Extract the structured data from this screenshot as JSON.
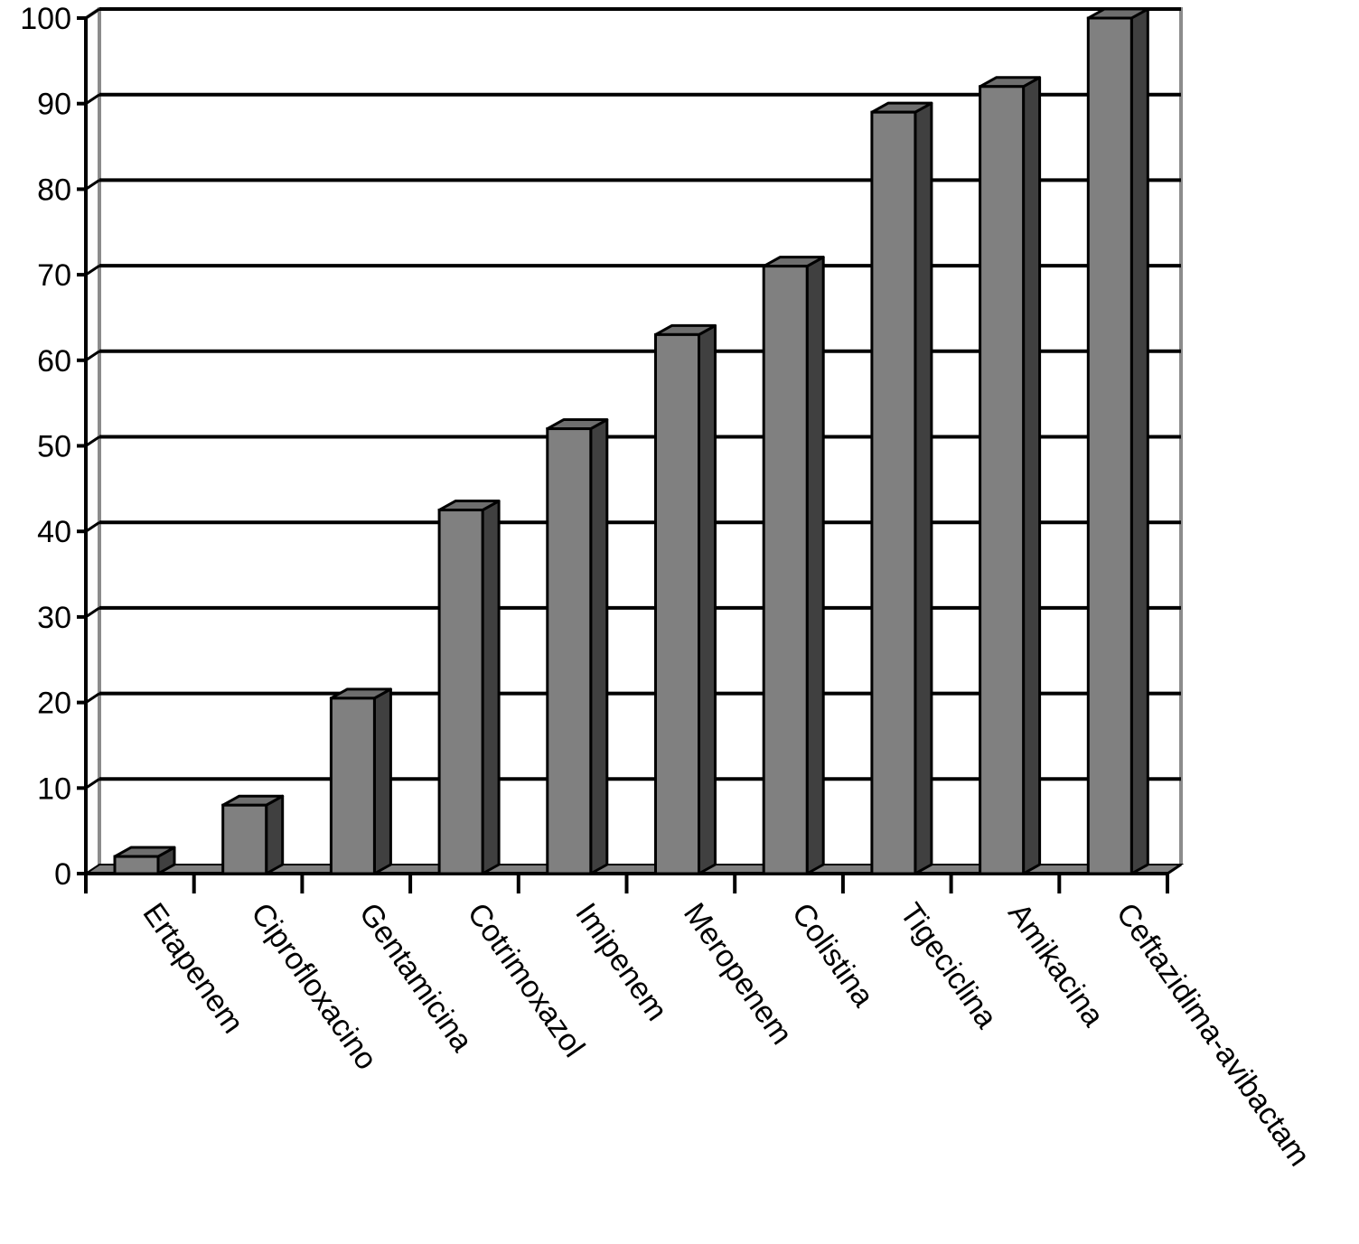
{
  "chart_data": {
    "type": "bar",
    "style": "3d-column",
    "categories": [
      "Ertapenem",
      "Ciprofloxacino",
      "Gentamicina",
      "Cotrimoxazol",
      "Imipenem",
      "Meropenem",
      "Colistina",
      "Tigeciclina",
      "Amikacina",
      "Ceftazidima-avibactam"
    ],
    "values": [
      2,
      8,
      20.5,
      42.5,
      52,
      63,
      71,
      89,
      92,
      100
    ],
    "yticks": [
      "0",
      "10",
      "20",
      "30",
      "40",
      "50",
      "60",
      "70",
      "80",
      "90",
      "100"
    ],
    "ylim": [
      0,
      100
    ],
    "grid": true,
    "title": "",
    "xlabel": "",
    "ylabel": "",
    "colors": {
      "bar_front": "#808080",
      "bar_side": "#404040",
      "bar_top": "#6e6e6e",
      "floor": "#7f7f7f",
      "wall_frame": "#8c8c8c",
      "gridline": "#000000"
    }
  }
}
